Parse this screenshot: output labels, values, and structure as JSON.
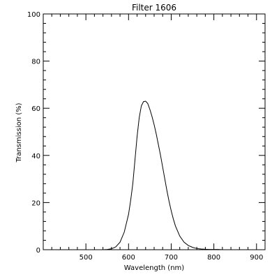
{
  "chart_data": {
    "type": "line",
    "title": "Filter  1606",
    "xlabel": "Wavelength (nm)",
    "ylabel": "Transmission (%)",
    "xlim": [
      400,
      920
    ],
    "ylim": [
      0,
      100
    ],
    "xticks": [
      500,
      600,
      700,
      800,
      900
    ],
    "xtick_labels": [
      "500",
      "600",
      "700",
      "800",
      "900"
    ],
    "yticks": [
      0,
      20,
      40,
      60,
      80,
      100
    ],
    "ytick_labels": [
      "0",
      "20",
      "40",
      "60",
      "80",
      "100"
    ],
    "grid": false,
    "line_color": "#000000",
    "series": [
      {
        "x": [
          540,
          550,
          560,
          570,
          580,
          590,
          600,
          605,
          610,
          615,
          620,
          625,
          630,
          635,
          640,
          645,
          650,
          655,
          660,
          665,
          670,
          675,
          680,
          685,
          690,
          695,
          700,
          705,
          710,
          720,
          730,
          740,
          750,
          760,
          770,
          780,
          790,
          800,
          810,
          820
        ],
        "y": [
          0,
          0.1,
          0.4,
          1.2,
          3.2,
          7.5,
          15,
          21,
          28,
          38,
          48,
          56,
          61,
          62.8,
          63,
          62,
          59.5,
          56.5,
          53,
          49,
          44.5,
          40,
          35,
          30,
          25,
          20.5,
          16.5,
          13,
          10,
          5.8,
          3.2,
          1.8,
          1.0,
          0.5,
          0.3,
          0.2,
          0.1,
          0.1,
          0.1,
          0.0
        ]
      }
    ]
  }
}
